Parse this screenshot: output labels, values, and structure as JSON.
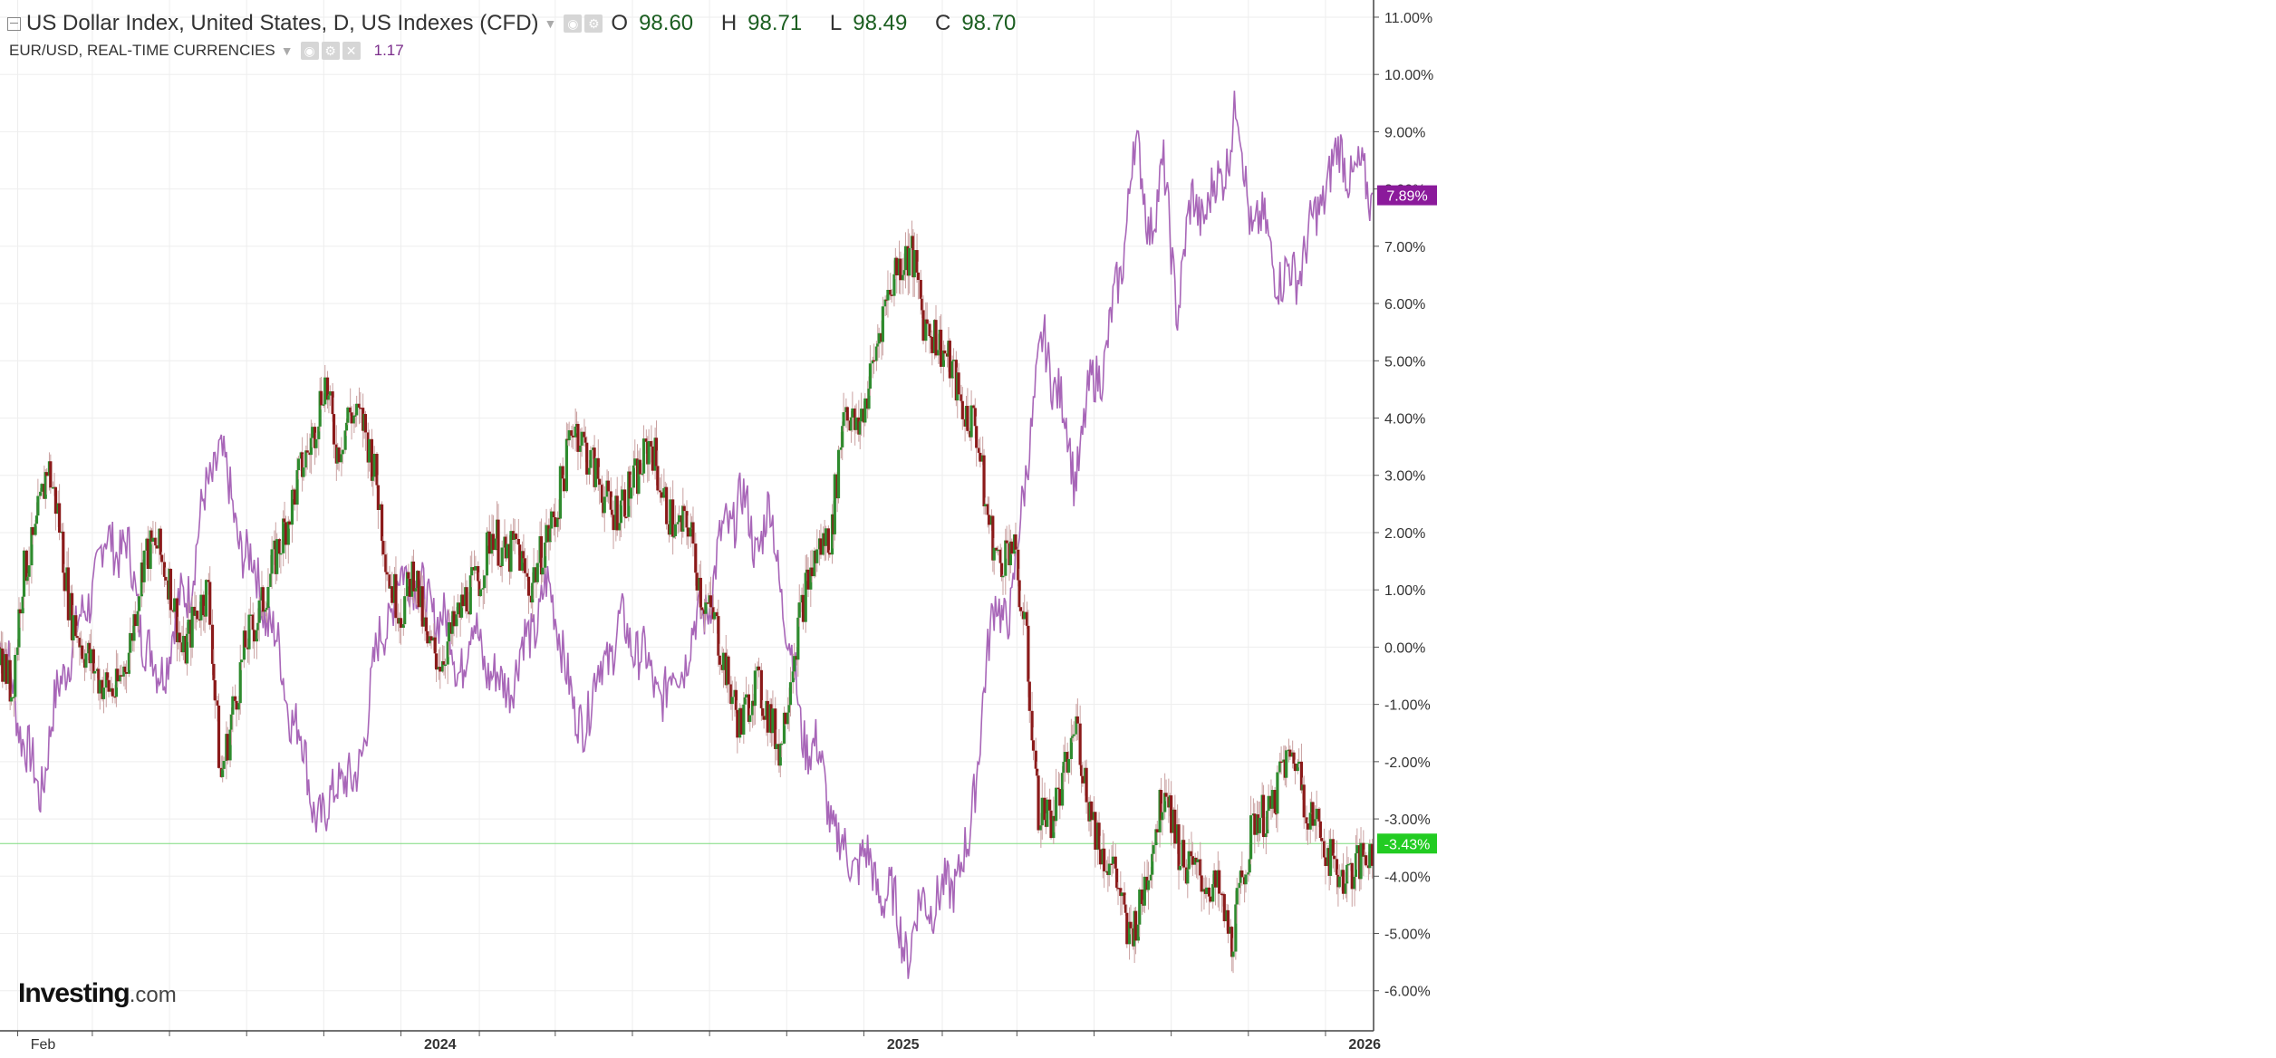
{
  "header": {
    "main_symbol": "US Dollar Index, United States, D, US Indexes (CFD)",
    "ohlc": [
      {
        "key": "O",
        "value": "98.60"
      },
      {
        "key": "H",
        "value": "98.71"
      },
      {
        "key": "L",
        "value": "98.49"
      },
      {
        "key": "C",
        "value": "98.70"
      }
    ],
    "compare_symbol": "EUR/USD, REAL-TIME CURRENCIES",
    "compare_value": "1.17"
  },
  "logo": {
    "brand": "Investing",
    "suffix": ".com"
  },
  "colors": {
    "up": "#2e8b2e",
    "down": "#8b1a1a",
    "compare_line": "#a866b8",
    "compare_badge": "#8b1a9b",
    "main_badge": "#22cc22",
    "grid": "#eeeeee",
    "baseline": "#7ddc7d"
  },
  "chart_data": {
    "type": "line",
    "title": "US Dollar Index, United States, D, US Indexes (CFD)",
    "x_range": [
      "2023-01-18",
      "2026-01-08"
    ],
    "x_ticks": [
      {
        "label": "Feb",
        "date": "2023-02-01"
      },
      {
        "label": "2024",
        "date": "2024-01-01"
      },
      {
        "label": "2025",
        "date": "2025-01-01"
      },
      {
        "label": "2026",
        "date": "2026-01-01"
      }
    ],
    "y_unit": "percent change",
    "y_range": [
      -6.7,
      11.3
    ],
    "y_ticks": [
      11,
      10,
      9,
      8,
      7,
      6,
      5,
      4,
      3,
      2,
      1,
      0,
      -1,
      -2,
      -3,
      -4,
      -5,
      -6
    ],
    "y_tick_labels": [
      "11.00%",
      "10.00%",
      "9.00%",
      "8.00%",
      "7.00%",
      "6.00%",
      "5.00%",
      "4.00%",
      "3.00%",
      "2.00%",
      "1.00%",
      "0.00%",
      "-1.00%",
      "-2.00%",
      "-3.00%",
      "-4.00%",
      "-5.00%",
      "-6.00%"
    ],
    "grid": true,
    "series": [
      {
        "name": "US Dollar Index",
        "style": "candlestick",
        "last_label": "-3.43%",
        "last_value": -3.43,
        "points": [
          [
            "2023-01-18",
            0.0
          ],
          [
            "2023-01-28",
            -0.8
          ],
          [
            "2023-02-05",
            1.2
          ],
          [
            "2023-02-15",
            1.9
          ],
          [
            "2023-02-25",
            3.2
          ],
          [
            "2023-03-05",
            2.4
          ],
          [
            "2023-03-15",
            0.6
          ],
          [
            "2023-03-25",
            0.0
          ],
          [
            "2023-04-08",
            -0.6
          ],
          [
            "2023-04-20",
            -0.8
          ],
          [
            "2023-05-01",
            0.0
          ],
          [
            "2023-05-12",
            1.6
          ],
          [
            "2023-05-22",
            1.8
          ],
          [
            "2023-06-02",
            1.1
          ],
          [
            "2023-06-12",
            -0.2
          ],
          [
            "2023-06-22",
            0.6
          ],
          [
            "2023-07-02",
            1.0
          ],
          [
            "2023-07-12",
            -2.3
          ],
          [
            "2023-07-20",
            -1.3
          ],
          [
            "2023-08-01",
            0.1
          ],
          [
            "2023-08-12",
            0.6
          ],
          [
            "2023-08-22",
            1.4
          ],
          [
            "2023-09-02",
            2.2
          ],
          [
            "2023-09-12",
            3.0
          ],
          [
            "2023-09-22",
            3.6
          ],
          [
            "2023-10-02",
            4.7
          ],
          [
            "2023-10-12",
            3.4
          ],
          [
            "2023-10-22",
            4.1
          ],
          [
            "2023-11-02",
            3.9
          ],
          [
            "2023-11-12",
            2.9
          ],
          [
            "2023-11-22",
            1.2
          ],
          [
            "2023-12-02",
            0.6
          ],
          [
            "2023-12-12",
            1.4
          ],
          [
            "2023-12-22",
            0.0
          ],
          [
            "2024-01-02",
            -0.2
          ],
          [
            "2024-01-12",
            0.3
          ],
          [
            "2024-01-22",
            0.9
          ],
          [
            "2024-02-02",
            1.2
          ],
          [
            "2024-02-12",
            2.1
          ],
          [
            "2024-02-22",
            1.5
          ],
          [
            "2024-03-02",
            1.8
          ],
          [
            "2024-03-12",
            1.0
          ],
          [
            "2024-03-22",
            1.7
          ],
          [
            "2024-04-02",
            2.3
          ],
          [
            "2024-04-16",
            4.0
          ],
          [
            "2024-04-26",
            3.4
          ],
          [
            "2024-05-06",
            2.9
          ],
          [
            "2024-05-16",
            2.3
          ],
          [
            "2024-05-26",
            2.6
          ],
          [
            "2024-06-06",
            3.0
          ],
          [
            "2024-06-16",
            3.6
          ],
          [
            "2024-06-26",
            2.6
          ],
          [
            "2024-07-06",
            2.0
          ],
          [
            "2024-07-16",
            2.2
          ],
          [
            "2024-07-26",
            0.9
          ],
          [
            "2024-08-06",
            0.4
          ],
          [
            "2024-08-16",
            -0.6
          ],
          [
            "2024-08-26",
            -1.4
          ],
          [
            "2024-09-06",
            -0.6
          ],
          [
            "2024-09-16",
            -1.1
          ],
          [
            "2024-09-26",
            -1.8
          ],
          [
            "2024-10-06",
            -0.2
          ],
          [
            "2024-10-16",
            1.0
          ],
          [
            "2024-10-26",
            1.7
          ],
          [
            "2024-11-06",
            2.0
          ],
          [
            "2024-11-16",
            4.3
          ],
          [
            "2024-11-26",
            3.7
          ],
          [
            "2024-12-06",
            4.6
          ],
          [
            "2024-12-16",
            5.8
          ],
          [
            "2024-12-26",
            6.6
          ],
          [
            "2025-01-08",
            6.9
          ],
          [
            "2025-01-18",
            5.7
          ],
          [
            "2025-01-28",
            5.4
          ],
          [
            "2025-02-08",
            4.9
          ],
          [
            "2025-02-18",
            4.1
          ],
          [
            "2025-02-28",
            3.9
          ],
          [
            "2025-03-08",
            2.4
          ],
          [
            "2025-03-18",
            1.4
          ],
          [
            "2025-03-28",
            1.9
          ],
          [
            "2025-04-08",
            0.3
          ],
          [
            "2025-04-18",
            -2.8
          ],
          [
            "2025-04-28",
            -3.0
          ],
          [
            "2025-05-08",
            -2.4
          ],
          [
            "2025-05-18",
            -1.3
          ],
          [
            "2025-05-28",
            -2.7
          ],
          [
            "2025-06-08",
            -3.6
          ],
          [
            "2025-06-18",
            -3.9
          ],
          [
            "2025-06-28",
            -5.1
          ],
          [
            "2025-07-08",
            -4.6
          ],
          [
            "2025-07-18",
            -3.4
          ],
          [
            "2025-07-28",
            -2.3
          ],
          [
            "2025-08-08",
            -3.6
          ],
          [
            "2025-08-18",
            -3.9
          ],
          [
            "2025-08-28",
            -4.1
          ],
          [
            "2025-09-08",
            -4.3
          ],
          [
            "2025-09-18",
            -5.2
          ],
          [
            "2025-09-28",
            -3.9
          ],
          [
            "2025-10-08",
            -2.9
          ],
          [
            "2025-10-18",
            -3.0
          ],
          [
            "2025-10-28",
            -2.1
          ],
          [
            "2025-11-08",
            -1.9
          ],
          [
            "2025-11-18",
            -2.9
          ],
          [
            "2025-11-28",
            -3.2
          ],
          [
            "2025-12-08",
            -3.9
          ],
          [
            "2025-12-18",
            -4.0
          ],
          [
            "2025-12-28",
            -3.8
          ],
          [
            "2026-01-07",
            -3.43
          ]
        ]
      },
      {
        "name": "EUR/USD, REAL-TIME CURRENCIES",
        "style": "line",
        "last_label": "7.89%",
        "last_value": 7.89,
        "points": [
          [
            "2023-01-18",
            0.0
          ],
          [
            "2023-01-28",
            -0.6
          ],
          [
            "2023-02-08",
            -1.9
          ],
          [
            "2023-02-18",
            -2.5
          ],
          [
            "2023-03-01",
            -1.3
          ],
          [
            "2023-03-12",
            -0.1
          ],
          [
            "2023-03-24",
            0.4
          ],
          [
            "2023-04-04",
            1.4
          ],
          [
            "2023-04-16",
            1.9
          ],
          [
            "2023-04-28",
            1.7
          ],
          [
            "2023-05-10",
            0.4
          ],
          [
            "2023-05-22",
            -0.6
          ],
          [
            "2023-06-04",
            0.3
          ],
          [
            "2023-06-16",
            1.1
          ],
          [
            "2023-06-28",
            2.4
          ],
          [
            "2023-07-10",
            3.6
          ],
          [
            "2023-07-20",
            2.4
          ],
          [
            "2023-08-01",
            1.6
          ],
          [
            "2023-08-12",
            1.0
          ],
          [
            "2023-08-22",
            0.2
          ],
          [
            "2023-09-02",
            -0.8
          ],
          [
            "2023-09-12",
            -1.6
          ],
          [
            "2023-09-22",
            -2.6
          ],
          [
            "2023-10-02",
            -3.2
          ],
          [
            "2023-10-12",
            -2.1
          ],
          [
            "2023-10-24",
            -2.6
          ],
          [
            "2023-11-04",
            -1.2
          ],
          [
            "2023-11-16",
            0.3
          ],
          [
            "2023-11-28",
            1.0
          ],
          [
            "2023-12-10",
            1.4
          ],
          [
            "2023-12-22",
            0.6
          ],
          [
            "2024-01-02",
            0.7
          ],
          [
            "2024-01-14",
            -0.4
          ],
          [
            "2024-01-26",
            0.3
          ],
          [
            "2024-02-06",
            -0.2
          ],
          [
            "2024-02-18",
            -0.8
          ],
          [
            "2024-03-02",
            -0.3
          ],
          [
            "2024-03-12",
            0.2
          ],
          [
            "2024-03-24",
            1.0
          ],
          [
            "2024-04-05",
            0.4
          ],
          [
            "2024-04-16",
            -1.4
          ],
          [
            "2024-04-28",
            -1.0
          ],
          [
            "2024-05-10",
            -0.2
          ],
          [
            "2024-05-22",
            0.3
          ],
          [
            "2024-06-04",
            0.1
          ],
          [
            "2024-06-16",
            -0.6
          ],
          [
            "2024-06-28",
            -0.8
          ],
          [
            "2024-07-10",
            -0.2
          ],
          [
            "2024-07-22",
            0.3
          ],
          [
            "2024-08-02",
            1.0
          ],
          [
            "2024-08-14",
            2.1
          ],
          [
            "2024-08-26",
            2.6
          ],
          [
            "2024-09-06",
            1.8
          ],
          [
            "2024-09-18",
            2.3
          ],
          [
            "2024-09-30",
            0.6
          ],
          [
            "2024-10-12",
            -1.4
          ],
          [
            "2024-10-24",
            -1.8
          ],
          [
            "2024-11-05",
            -2.9
          ],
          [
            "2024-11-17",
            -3.8
          ],
          [
            "2024-11-29",
            -3.6
          ],
          [
            "2024-12-10",
            -4.1
          ],
          [
            "2024-12-22",
            -4.4
          ],
          [
            "2025-01-06",
            -5.3
          ],
          [
            "2025-01-18",
            -4.3
          ],
          [
            "2025-01-30",
            -4.5
          ],
          [
            "2025-02-10",
            -4.0
          ],
          [
            "2025-02-22",
            -3.6
          ],
          [
            "2025-03-05",
            -0.8
          ],
          [
            "2025-03-16",
            0.8
          ],
          [
            "2025-03-28",
            0.6
          ],
          [
            "2025-04-10",
            3.6
          ],
          [
            "2025-04-22",
            5.3
          ],
          [
            "2025-05-04",
            4.5
          ],
          [
            "2025-05-16",
            3.0
          ],
          [
            "2025-05-28",
            4.3
          ],
          [
            "2025-06-10",
            5.2
          ],
          [
            "2025-06-22",
            6.4
          ],
          [
            "2025-07-02",
            8.9
          ],
          [
            "2025-07-14",
            7.4
          ],
          [
            "2025-07-26",
            8.2
          ],
          [
            "2025-08-06",
            6.0
          ],
          [
            "2025-08-18",
            7.8
          ],
          [
            "2025-08-30",
            7.6
          ],
          [
            "2025-09-10",
            8.3
          ],
          [
            "2025-09-22",
            9.3
          ],
          [
            "2025-10-04",
            7.4
          ],
          [
            "2025-10-16",
            7.2
          ],
          [
            "2025-10-28",
            6.3
          ],
          [
            "2025-11-08",
            6.6
          ],
          [
            "2025-11-20",
            7.2
          ],
          [
            "2025-12-02",
            8.2
          ],
          [
            "2025-12-14",
            8.6
          ],
          [
            "2025-12-26",
            8.2
          ],
          [
            "2026-01-07",
            7.89
          ]
        ]
      }
    ]
  }
}
